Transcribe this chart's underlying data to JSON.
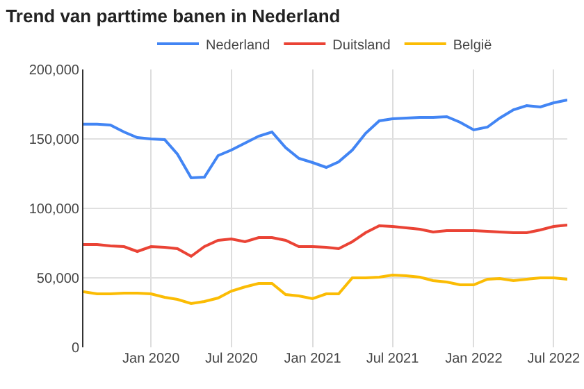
{
  "chart_data": {
    "type": "line",
    "title": "Trend van parttime banen in Nederland",
    "x": [
      "2019-08",
      "2019-09",
      "2019-10",
      "2019-11",
      "2019-12",
      "2020-01",
      "2020-02",
      "2020-03",
      "2020-04",
      "2020-05",
      "2020-06",
      "2020-07",
      "2020-08",
      "2020-09",
      "2020-10",
      "2020-11",
      "2020-12",
      "2021-01",
      "2021-02",
      "2021-03",
      "2021-04",
      "2021-05",
      "2021-06",
      "2021-07",
      "2021-08",
      "2021-09",
      "2021-10",
      "2021-11",
      "2021-12",
      "2022-01",
      "2022-02",
      "2022-03",
      "2022-04",
      "2022-05",
      "2022-06",
      "2022-07",
      "2022-08"
    ],
    "series": [
      {
        "name": "Nederland",
        "color": "#4285f4",
        "values": [
          160600,
          160600,
          160000,
          155000,
          151000,
          150000,
          149500,
          139000,
          122000,
          122500,
          138000,
          142000,
          147000,
          152000,
          155000,
          143700,
          136000,
          133000,
          129500,
          133500,
          142000,
          154000,
          163000,
          164500,
          165000,
          165500,
          165500,
          166000,
          162000,
          156500,
          158500,
          165000,
          171000,
          174000,
          173000,
          176000,
          178000
        ]
      },
      {
        "name": "Duitsland",
        "color": "#ea4335",
        "values": [
          74000,
          74000,
          73000,
          72500,
          69000,
          72500,
          72000,
          71000,
          65500,
          72500,
          77000,
          78000,
          76000,
          79000,
          79000,
          77000,
          72500,
          72500,
          72000,
          71000,
          76000,
          82500,
          87500,
          87000,
          86000,
          85000,
          83000,
          84000,
          84000,
          84000,
          83500,
          83000,
          82500,
          82500,
          84500,
          87000,
          88000
        ]
      },
      {
        "name": "België",
        "color": "#fbbc04",
        "values": [
          40000,
          38500,
          38500,
          39000,
          39000,
          38500,
          36000,
          34500,
          31500,
          33000,
          35500,
          40500,
          43500,
          46000,
          46000,
          38000,
          37000,
          35000,
          38500,
          38500,
          50000,
          50000,
          50500,
          52000,
          51500,
          50500,
          48000,
          47000,
          45000,
          45000,
          49000,
          49500,
          48000,
          49000,
          50000,
          50000,
          49000
        ]
      }
    ],
    "xlim": [
      "2019-08-01",
      "2022-08-01"
    ],
    "xticks": [
      {
        "value": "2020-01",
        "label": "Jan 2020"
      },
      {
        "value": "2020-07",
        "label": "Jul 2020"
      },
      {
        "value": "2021-01",
        "label": "Jan 2021"
      },
      {
        "value": "2021-07",
        "label": "Jul 2021"
      },
      {
        "value": "2022-01",
        "label": "Jan 2022"
      },
      {
        "value": "2022-07",
        "label": "Jul 2022"
      }
    ],
    "ylim": [
      0,
      200000
    ],
    "yticks": [
      {
        "value": 0,
        "label": "0"
      },
      {
        "value": 50000,
        "label": "50,000"
      },
      {
        "value": 100000,
        "label": "100,000"
      },
      {
        "value": 150000,
        "label": "150,000"
      },
      {
        "value": 200000,
        "label": "200,000"
      }
    ],
    "grid": true,
    "legend": "top",
    "marker": "none",
    "line_style": "solid"
  }
}
